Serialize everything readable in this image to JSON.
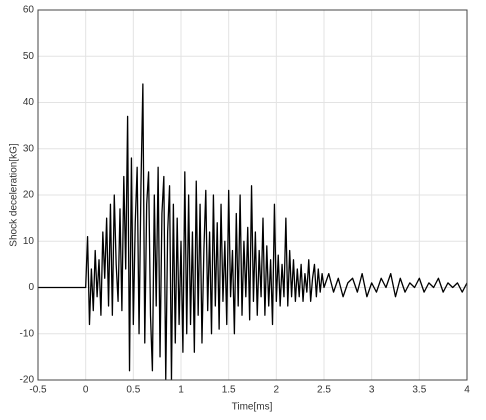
{
  "chart_data": {
    "type": "line",
    "xlabel": "Time[ms]",
    "ylabel": "Shock deceleration[kG]",
    "xlim": [
      -0.5,
      4
    ],
    "ylim": [
      -20,
      60
    ],
    "xticks": [
      -0.5,
      0,
      0.5,
      1,
      1.5,
      2,
      2.5,
      3,
      3.5,
      4
    ],
    "yticks": [
      -20,
      -10,
      0,
      10,
      20,
      30,
      40,
      50,
      60
    ],
    "grid": true,
    "series": [
      {
        "color": "#000000",
        "x": [
          -0.5,
          0,
          0.02,
          0.04,
          0.06,
          0.08,
          0.1,
          0.12,
          0.14,
          0.16,
          0.18,
          0.2,
          0.22,
          0.24,
          0.26,
          0.28,
          0.3,
          0.32,
          0.34,
          0.36,
          0.38,
          0.4,
          0.42,
          0.44,
          0.46,
          0.48,
          0.5,
          0.52,
          0.54,
          0.56,
          0.58,
          0.6,
          0.62,
          0.64,
          0.66,
          0.68,
          0.7,
          0.72,
          0.74,
          0.76,
          0.78,
          0.8,
          0.82,
          0.84,
          0.86,
          0.88,
          0.9,
          0.92,
          0.94,
          0.96,
          0.98,
          1.0,
          1.02,
          1.04,
          1.06,
          1.08,
          1.1,
          1.12,
          1.14,
          1.16,
          1.18,
          1.2,
          1.22,
          1.24,
          1.26,
          1.28,
          1.3,
          1.32,
          1.34,
          1.36,
          1.38,
          1.4,
          1.42,
          1.44,
          1.46,
          1.48,
          1.5,
          1.52,
          1.54,
          1.56,
          1.58,
          1.6,
          1.62,
          1.64,
          1.66,
          1.68,
          1.7,
          1.72,
          1.74,
          1.76,
          1.78,
          1.8,
          1.82,
          1.84,
          1.86,
          1.88,
          1.9,
          1.92,
          1.94,
          1.96,
          1.98,
          2.0,
          2.02,
          2.04,
          2.06,
          2.08,
          2.1,
          2.12,
          2.14,
          2.16,
          2.18,
          2.2,
          2.22,
          2.24,
          2.26,
          2.28,
          2.3,
          2.32,
          2.34,
          2.36,
          2.38,
          2.4,
          2.42,
          2.44,
          2.46,
          2.48,
          2.5,
          2.55,
          2.6,
          2.65,
          2.7,
          2.75,
          2.8,
          2.85,
          2.9,
          2.95,
          3.0,
          3.05,
          3.1,
          3.15,
          3.2,
          3.25,
          3.3,
          3.35,
          3.4,
          3.45,
          3.5,
          3.55,
          3.6,
          3.65,
          3.7,
          3.75,
          3.8,
          3.85,
          3.9,
          3.95,
          4.0
        ],
        "values": [
          0,
          0,
          11,
          -8,
          4,
          -5,
          8,
          -2,
          6,
          -6,
          12,
          2,
          15,
          -4,
          18,
          -6,
          20,
          5,
          -3,
          17,
          -5,
          24,
          4,
          37,
          -18,
          28,
          -8,
          14,
          26,
          -10,
          22,
          44,
          -12,
          18,
          25,
          -6,
          -18,
          20,
          -4,
          26,
          -15,
          16,
          24,
          -20,
          12,
          22,
          -20,
          18,
          -12,
          15,
          -8,
          10,
          -14,
          25,
          -10,
          20,
          -8,
          12,
          -14,
          23,
          -6,
          18,
          -12,
          8,
          21,
          -5,
          12,
          -10,
          20,
          -4,
          14,
          -9,
          18,
          -3,
          10,
          -8,
          21,
          -2,
          8,
          -10,
          16,
          -4,
          20,
          -6,
          10,
          -2,
          13,
          -7,
          22,
          -3,
          12,
          -6,
          8,
          -2,
          15,
          -6,
          9,
          -4,
          6,
          -8,
          18,
          -3,
          7,
          -4,
          5,
          -2,
          15,
          -4,
          8,
          -2,
          6,
          -3,
          4,
          -2,
          5,
          -3,
          3,
          -1,
          6,
          -3,
          2,
          5,
          -2,
          4,
          -1,
          3,
          0,
          3,
          -1,
          2,
          -2,
          1,
          2,
          -1,
          3,
          -2,
          1,
          -1,
          2,
          0,
          3,
          -2,
          2,
          -1,
          1,
          0,
          2,
          -1,
          1,
          0,
          2,
          -1,
          1,
          0,
          1,
          -1,
          1
        ]
      }
    ]
  }
}
